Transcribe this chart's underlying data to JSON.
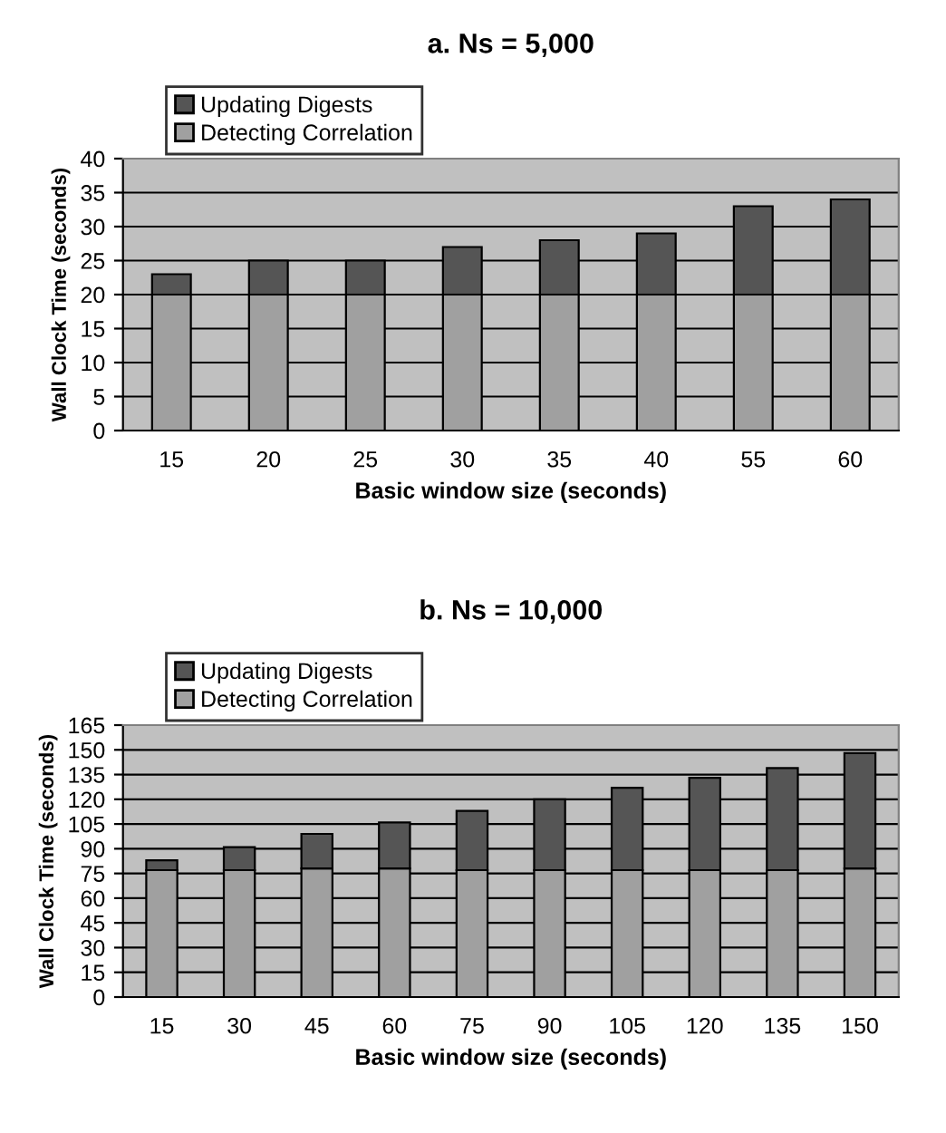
{
  "chart_data": [
    {
      "type": "bar",
      "stacked": true,
      "title": "a. Ns = 5,000",
      "xlabel": "Basic window size (seconds)",
      "ylabel": "Wall Clock Time (seconds)",
      "categories": [
        "15",
        "20",
        "25",
        "30",
        "35",
        "40",
        "55",
        "60"
      ],
      "series": [
        {
          "name": "Detecting Correlation",
          "color": "#a0a0a0",
          "values": [
            20,
            20,
            20,
            20,
            20,
            20,
            20,
            20
          ]
        },
        {
          "name": "Updating Digests",
          "color": "#555555",
          "values": [
            3,
            5,
            5,
            7,
            8,
            9,
            13,
            14
          ]
        }
      ],
      "ylim": [
        0,
        40
      ],
      "yticks": [
        0,
        5,
        10,
        15,
        20,
        25,
        30,
        35,
        40
      ],
      "grid": "y",
      "legend": "top left"
    },
    {
      "type": "bar",
      "stacked": true,
      "title": "b. Ns = 10,000",
      "xlabel": "Basic window size (seconds)",
      "ylabel": "Wall Clock Time (seconds)",
      "categories": [
        "15",
        "30",
        "45",
        "60",
        "75",
        "90",
        "105",
        "120",
        "135",
        "150"
      ],
      "series": [
        {
          "name": "Detecting Correlation",
          "color": "#a0a0a0",
          "values": [
            77,
            77,
            78,
            78,
            77,
            77,
            77,
            77,
            77,
            78
          ]
        },
        {
          "name": "Updating Digests",
          "color": "#555555",
          "values": [
            6,
            14,
            21,
            28,
            36,
            43,
            50,
            56,
            62,
            70
          ]
        }
      ],
      "ylim": [
        0,
        165
      ],
      "yticks": [
        0,
        15,
        30,
        45,
        60,
        75,
        90,
        105,
        120,
        135,
        150,
        165
      ],
      "grid": "y",
      "legend": "top left"
    }
  ]
}
